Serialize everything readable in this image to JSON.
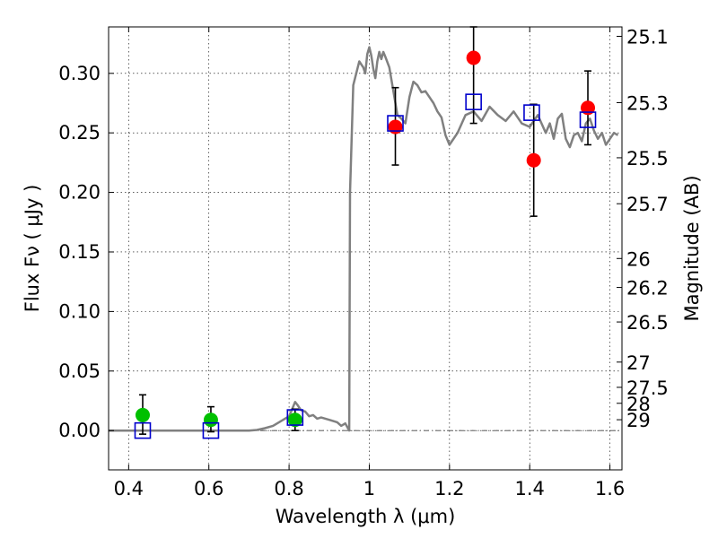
{
  "chart_data": {
    "type": "scatter",
    "title": "",
    "xlabel": "Wavelength  λ (μm)",
    "ylabel": "Flux  Fν  ( μJy )",
    "y2label": "Magnitude (AB)",
    "xlim": [
      0.35,
      1.63
    ],
    "ylim": [
      -0.033,
      0.339
    ],
    "grid": true,
    "x_ticks": [
      0.4,
      0.6,
      0.8,
      1.0,
      1.2,
      1.4,
      1.6
    ],
    "x_tick_labels": [
      "0.4",
      "0.6",
      "0.8",
      "1",
      "1.2",
      "1.4",
      "1.6"
    ],
    "y_ticks": [
      0.0,
      0.05,
      0.1,
      0.15,
      0.2,
      0.25,
      0.3
    ],
    "y_tick_labels": [
      "0.00",
      "0.05",
      "0.10",
      "0.15",
      "0.20",
      "0.25",
      "0.30"
    ],
    "y2_ticks": [
      {
        "label": "25.1",
        "flux": 0.3311
      },
      {
        "label": "25.3",
        "flux": 0.2754
      },
      {
        "label": "25.5",
        "flux": 0.2291
      },
      {
        "label": "25.7",
        "flux": 0.1905
      },
      {
        "label": "26",
        "flux": 0.1445
      },
      {
        "label": "26.2",
        "flux": 0.1202
      },
      {
        "label": "26.5",
        "flux": 0.0912
      },
      {
        "label": "27",
        "flux": 0.0575
      },
      {
        "label": "27.5",
        "flux": 0.0363
      },
      {
        "label": "28",
        "flux": 0.0229
      },
      {
        "label": "29",
        "flux": 0.0091
      }
    ],
    "colors": {
      "model": "#808080",
      "observed_red": "#ff0000",
      "observed_green": "#00c000",
      "model_flux": "#0000cc",
      "errorbar": "#000000"
    },
    "series": [
      {
        "name": "model_spectrum",
        "kind": "line",
        "points": [
          [
            0.35,
            0.0
          ],
          [
            0.7,
            0.0
          ],
          [
            0.72,
            0.0005
          ],
          [
            0.74,
            0.002
          ],
          [
            0.76,
            0.004
          ],
          [
            0.78,
            0.008
          ],
          [
            0.8,
            0.012
          ],
          [
            0.81,
            0.02
          ],
          [
            0.815,
            0.024
          ],
          [
            0.82,
            0.022
          ],
          [
            0.83,
            0.017
          ],
          [
            0.84,
            0.016
          ],
          [
            0.85,
            0.012
          ],
          [
            0.86,
            0.013
          ],
          [
            0.87,
            0.01
          ],
          [
            0.88,
            0.011
          ],
          [
            0.9,
            0.009
          ],
          [
            0.91,
            0.008
          ],
          [
            0.92,
            0.007
          ],
          [
            0.93,
            0.004
          ],
          [
            0.94,
            0.006
          ],
          [
            0.945,
            0.003
          ],
          [
            0.95,
            0.0
          ],
          [
            0.952,
            0.2
          ],
          [
            0.96,
            0.29
          ],
          [
            0.975,
            0.31
          ],
          [
            0.985,
            0.305
          ],
          [
            0.99,
            0.3
          ],
          [
            0.995,
            0.316
          ],
          [
            1.0,
            0.322
          ],
          [
            1.005,
            0.315
          ],
          [
            1.01,
            0.304
          ],
          [
            1.015,
            0.296
          ],
          [
            1.02,
            0.31
          ],
          [
            1.025,
            0.318
          ],
          [
            1.03,
            0.312
          ],
          [
            1.035,
            0.318
          ],
          [
            1.04,
            0.314
          ],
          [
            1.05,
            0.305
          ],
          [
            1.06,
            0.285
          ],
          [
            1.07,
            0.265
          ],
          [
            1.08,
            0.262
          ],
          [
            1.09,
            0.258
          ],
          [
            1.1,
            0.28
          ],
          [
            1.11,
            0.293
          ],
          [
            1.12,
            0.29
          ],
          [
            1.13,
            0.284
          ],
          [
            1.14,
            0.285
          ],
          [
            1.15,
            0.28
          ],
          [
            1.16,
            0.275
          ],
          [
            1.17,
            0.268
          ],
          [
            1.18,
            0.263
          ],
          [
            1.19,
            0.248
          ],
          [
            1.2,
            0.24
          ],
          [
            1.22,
            0.25
          ],
          [
            1.24,
            0.265
          ],
          [
            1.26,
            0.268
          ],
          [
            1.28,
            0.26
          ],
          [
            1.3,
            0.272
          ],
          [
            1.32,
            0.265
          ],
          [
            1.34,
            0.26
          ],
          [
            1.36,
            0.268
          ],
          [
            1.38,
            0.258
          ],
          [
            1.4,
            0.255
          ],
          [
            1.42,
            0.265
          ],
          [
            1.44,
            0.25
          ],
          [
            1.45,
            0.258
          ],
          [
            1.46,
            0.245
          ],
          [
            1.47,
            0.262
          ],
          [
            1.48,
            0.266
          ],
          [
            1.49,
            0.245
          ],
          [
            1.5,
            0.238
          ],
          [
            1.51,
            0.248
          ],
          [
            1.52,
            0.25
          ],
          [
            1.53,
            0.243
          ],
          [
            1.54,
            0.258
          ],
          [
            1.55,
            0.262
          ],
          [
            1.56,
            0.252
          ],
          [
            1.57,
            0.245
          ],
          [
            1.58,
            0.25
          ],
          [
            1.59,
            0.24
          ],
          [
            1.6,
            0.245
          ],
          [
            1.61,
            0.25
          ],
          [
            1.62,
            0.248
          ]
        ]
      },
      {
        "name": "observed_detections",
        "kind": "scatter",
        "marker": "circle",
        "color": "red",
        "points": [
          {
            "x": 1.065,
            "y": 0.255,
            "err_low": 0.223,
            "err_high": 0.288
          },
          {
            "x": 1.26,
            "y": 0.313,
            "err_low": 0.258,
            "err_high": 0.339
          },
          {
            "x": 1.41,
            "y": 0.227,
            "err_low": 0.18,
            "err_high": 0.274
          },
          {
            "x": 1.545,
            "y": 0.271,
            "err_low": 0.24,
            "err_high": 0.302
          }
        ]
      },
      {
        "name": "observed_nondetections",
        "kind": "scatter",
        "marker": "circle",
        "color": "green",
        "points": [
          {
            "x": 0.435,
            "y": 0.013,
            "err_low": -0.003,
            "err_high": 0.03
          },
          {
            "x": 0.605,
            "y": 0.009,
            "err_low": -0.001,
            "err_high": 0.02
          },
          {
            "x": 0.815,
            "y": 0.009,
            "err_low": 0.0,
            "err_high": 0.018
          }
        ]
      },
      {
        "name": "model_band_flux",
        "kind": "scatter",
        "marker": "open-square",
        "color": "blue",
        "points": [
          {
            "x": 0.435,
            "y": 0.0
          },
          {
            "x": 0.605,
            "y": 0.0
          },
          {
            "x": 0.815,
            "y": 0.011
          },
          {
            "x": 1.065,
            "y": 0.258
          },
          {
            "x": 1.26,
            "y": 0.276
          },
          {
            "x": 1.405,
            "y": 0.267
          },
          {
            "x": 1.545,
            "y": 0.261
          }
        ]
      }
    ]
  }
}
